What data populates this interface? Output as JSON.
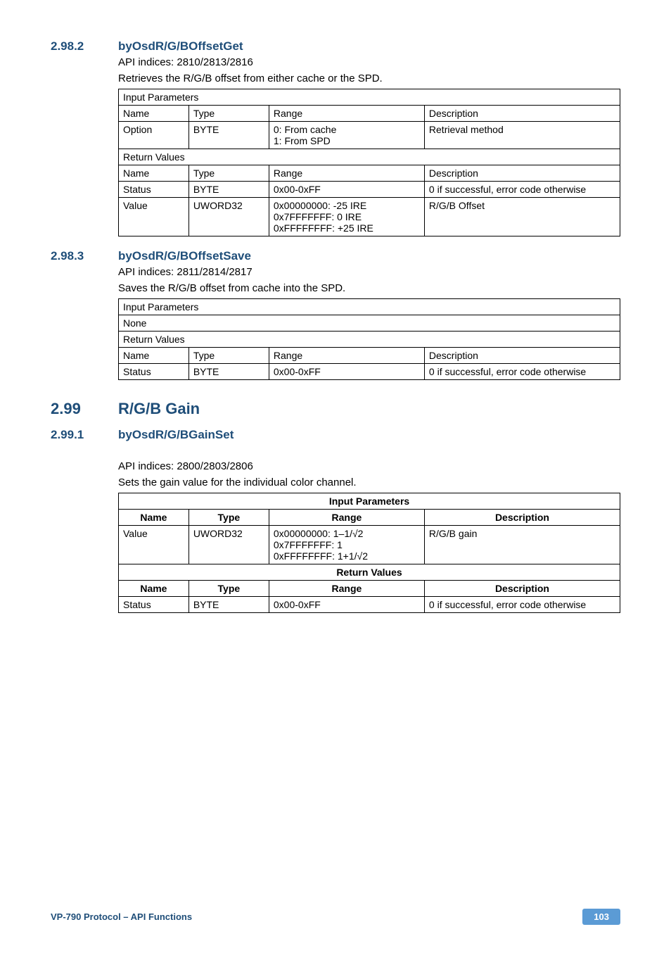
{
  "s2982": {
    "num": "2.98.2",
    "title": "byOsdR/G/BOffsetGet",
    "api": "API indices: 2810/2813/2816",
    "desc": "Retrieves the R/G/B offset from either cache or the SPD.",
    "tbl": {
      "hdr_input": "Input Parameters",
      "h_name": "Name",
      "h_type": "Type",
      "h_range": "Range",
      "h_desc": "Description",
      "r1": {
        "name": "Option",
        "type": "BYTE",
        "range": "0: From cache\n1: From SPD",
        "desc": "Retrieval method"
      },
      "hdr_return": "Return Values",
      "r2": {
        "name": "Status",
        "type": "BYTE",
        "range": "0x00-0xFF",
        "desc": "0 if successful, error code otherwise"
      },
      "r3": {
        "name": "Value",
        "type": "UWORD32",
        "range": "0x00000000: -25 IRE\n0x7FFFFFFF: 0 IRE\n0xFFFFFFFF: +25 IRE",
        "desc": "R/G/B Offset"
      }
    }
  },
  "s2983": {
    "num": "2.98.3",
    "title": "byOsdR/G/BOffsetSave",
    "api": "API indices: 2811/2814/2817",
    "desc": "Saves the R/G/B offset from cache into the SPD.",
    "tbl": {
      "hdr_input": "Input Parameters",
      "none": "None",
      "hdr_return": "Return Values",
      "h_name": "Name",
      "h_type": "Type",
      "h_range": "Range",
      "h_desc": "Description",
      "r1": {
        "name": "Status",
        "type": "BYTE",
        "range": "0x00-0xFF",
        "desc": "0 if successful, error code otherwise"
      }
    }
  },
  "s299": {
    "num": "2.99",
    "title": "R/G/B Gain"
  },
  "s2991": {
    "num": "2.99.1",
    "title": "byOsdR/G/BGainSet",
    "api": "API indices: 2800/2803/2806",
    "desc": "Sets the gain value for the individual color channel.",
    "tbl": {
      "hdr_input": "Input Parameters",
      "h_name": "Name",
      "h_type": "Type",
      "h_range": "Range",
      "h_desc": "Description",
      "r1": {
        "name": "Value",
        "type": "UWORD32",
        "range": "0x00000000: 1–1/√2\n0x7FFFFFFF: 1\n0xFFFFFFFF: 1+1/√2",
        "desc": "R/G/B gain"
      },
      "hdr_return": "Return Values",
      "r2": {
        "name": "Status",
        "type": "BYTE",
        "range": "0x00-0xFF",
        "desc": "0 if successful, error code otherwise"
      }
    }
  },
  "footer": {
    "left": "VP-790 Protocol –  API Functions",
    "page": "103"
  }
}
